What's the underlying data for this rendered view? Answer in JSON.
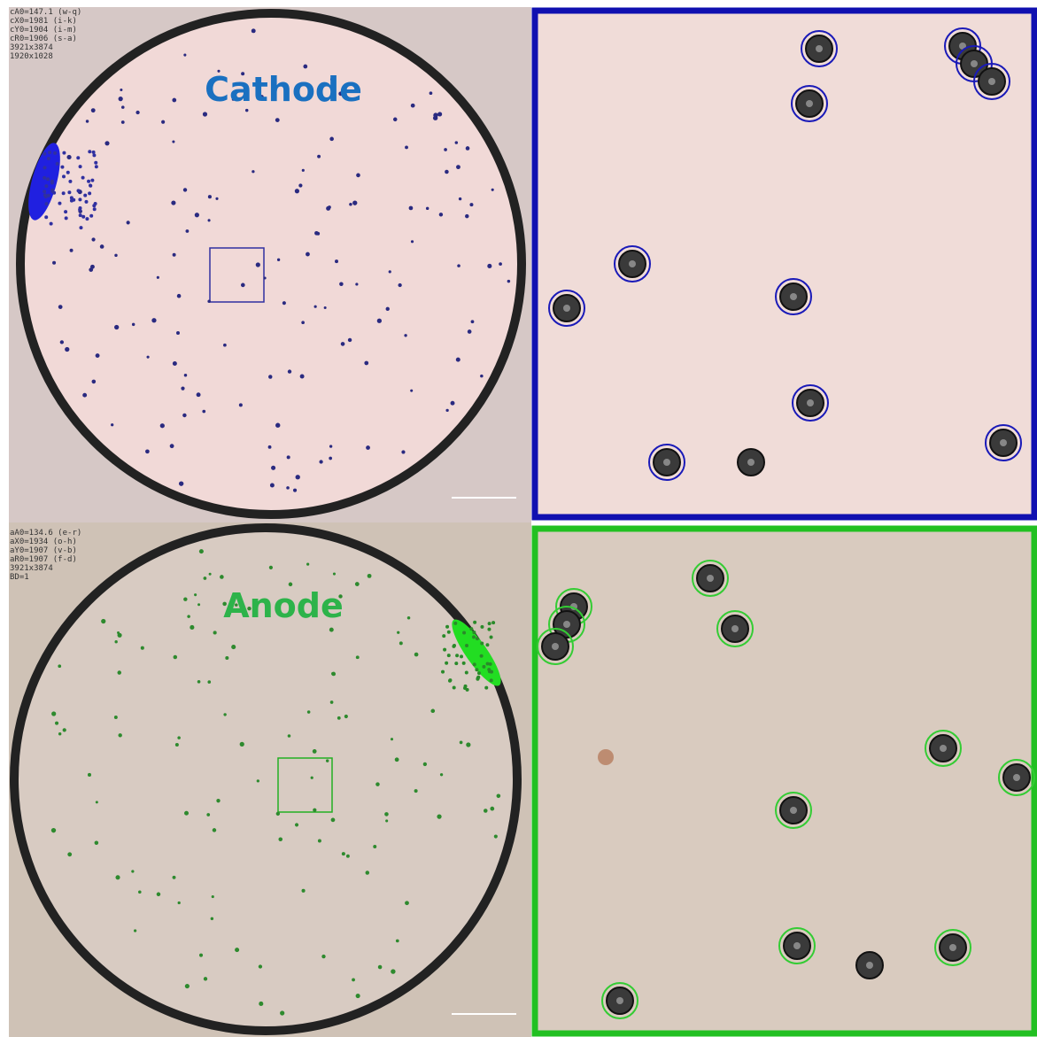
{
  "cathode": {
    "info": [
      "cA0=147.1 (w-q)",
      "cX0=1981 (i-k)",
      "cY0=1904 (i-m)",
      "cR0=1906 (s-a)",
      "3921x3874",
      "1920x1028"
    ],
    "label": "Cathode"
  },
  "anode": {
    "info": [
      "aA0=134.6 (e-r)",
      "aX0=1934 (o-h)",
      "aY0=1907 (v-b)",
      "aR0=1907 (f-d)",
      "3921x3874",
      "BD=1"
    ],
    "label": "Anode"
  }
}
